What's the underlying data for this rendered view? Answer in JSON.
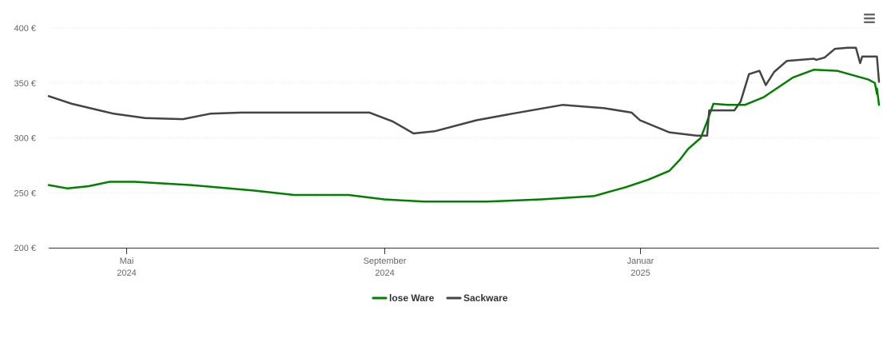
{
  "menu": {
    "icon": "hamburger-menu-icon"
  },
  "chart_data": {
    "type": "line",
    "title": "",
    "xlabel": "",
    "ylabel": "",
    "ylim": [
      200,
      400
    ],
    "yticks": [
      {
        "value": 200,
        "label": "200 €"
      },
      {
        "value": 250,
        "label": "250 €"
      },
      {
        "value": 300,
        "label": "300 €"
      },
      {
        "value": 350,
        "label": "350 €"
      },
      {
        "value": 400,
        "label": "400 €"
      }
    ],
    "xlim": [
      "2024-03-25",
      "2025-04-25"
    ],
    "xticks": [
      {
        "date": "2024-05-01",
        "label1": "Mai",
        "label2": "2024"
      },
      {
        "date": "2024-09-01",
        "label1": "September",
        "label2": "2024"
      },
      {
        "date": "2025-01-01",
        "label1": "Januar",
        "label2": "2025"
      }
    ],
    "grid": true,
    "legend_position": "bottom-center",
    "series": [
      {
        "name": "lose Ware",
        "color": "#008000",
        "points": [
          [
            "2024-03-25",
            257
          ],
          [
            "2024-04-03",
            254
          ],
          [
            "2024-04-13",
            256
          ],
          [
            "2024-04-23",
            260
          ],
          [
            "2024-05-05",
            260
          ],
          [
            "2024-06-01",
            257
          ],
          [
            "2024-07-01",
            252
          ],
          [
            "2024-07-20",
            248
          ],
          [
            "2024-08-15",
            248
          ],
          [
            "2024-09-01",
            244
          ],
          [
            "2024-09-20",
            242
          ],
          [
            "2024-10-20",
            242
          ],
          [
            "2024-11-15",
            244
          ],
          [
            "2024-12-10",
            247
          ],
          [
            "2024-12-25",
            255
          ],
          [
            "2025-01-05",
            262
          ],
          [
            "2025-01-15",
            270
          ],
          [
            "2025-01-20",
            280
          ],
          [
            "2025-01-24",
            290
          ],
          [
            "2025-01-30",
            300
          ],
          [
            "2025-02-02",
            315
          ],
          [
            "2025-02-05",
            331
          ],
          [
            "2025-02-12",
            330
          ],
          [
            "2025-02-20",
            330
          ],
          [
            "2025-03-01",
            337
          ],
          [
            "2025-03-15",
            355
          ],
          [
            "2025-03-25",
            362
          ],
          [
            "2025-04-05",
            361
          ],
          [
            "2025-04-20",
            353
          ],
          [
            "2025-04-23",
            350
          ],
          [
            "2025-04-24",
            340
          ],
          [
            "2025-04-24",
            345
          ],
          [
            "2025-04-25",
            330
          ]
        ]
      },
      {
        "name": "Sackware",
        "color": "#444444",
        "points": [
          [
            "2024-03-25",
            338
          ],
          [
            "2024-04-05",
            331
          ],
          [
            "2024-04-25",
            322
          ],
          [
            "2024-05-10",
            318
          ],
          [
            "2024-05-28",
            317
          ],
          [
            "2024-06-10",
            322
          ],
          [
            "2024-06-25",
            323
          ],
          [
            "2024-08-25",
            323
          ],
          [
            "2024-09-05",
            315
          ],
          [
            "2024-09-15",
            304
          ],
          [
            "2024-09-25",
            306
          ],
          [
            "2024-10-15",
            316
          ],
          [
            "2024-11-01",
            322
          ],
          [
            "2024-11-25",
            330
          ],
          [
            "2024-12-15",
            327
          ],
          [
            "2024-12-28",
            323
          ],
          [
            "2025-01-01",
            316
          ],
          [
            "2025-01-15",
            305
          ],
          [
            "2025-01-28",
            302
          ],
          [
            "2025-02-02",
            302
          ],
          [
            "2025-02-03",
            325
          ],
          [
            "2025-02-15",
            325
          ],
          [
            "2025-02-18",
            333
          ],
          [
            "2025-02-22",
            358
          ],
          [
            "2025-02-27",
            361
          ],
          [
            "2025-03-02",
            348
          ],
          [
            "2025-03-06",
            360
          ],
          [
            "2025-03-12",
            370
          ],
          [
            "2025-03-25",
            372
          ],
          [
            "2025-03-26",
            371
          ],
          [
            "2025-03-30",
            373
          ],
          [
            "2025-04-04",
            381
          ],
          [
            "2025-04-10",
            382
          ],
          [
            "2025-04-14",
            382
          ],
          [
            "2025-04-16",
            368
          ],
          [
            "2025-04-17",
            374
          ],
          [
            "2025-04-24",
            374
          ],
          [
            "2025-04-25",
            351
          ]
        ]
      }
    ]
  }
}
